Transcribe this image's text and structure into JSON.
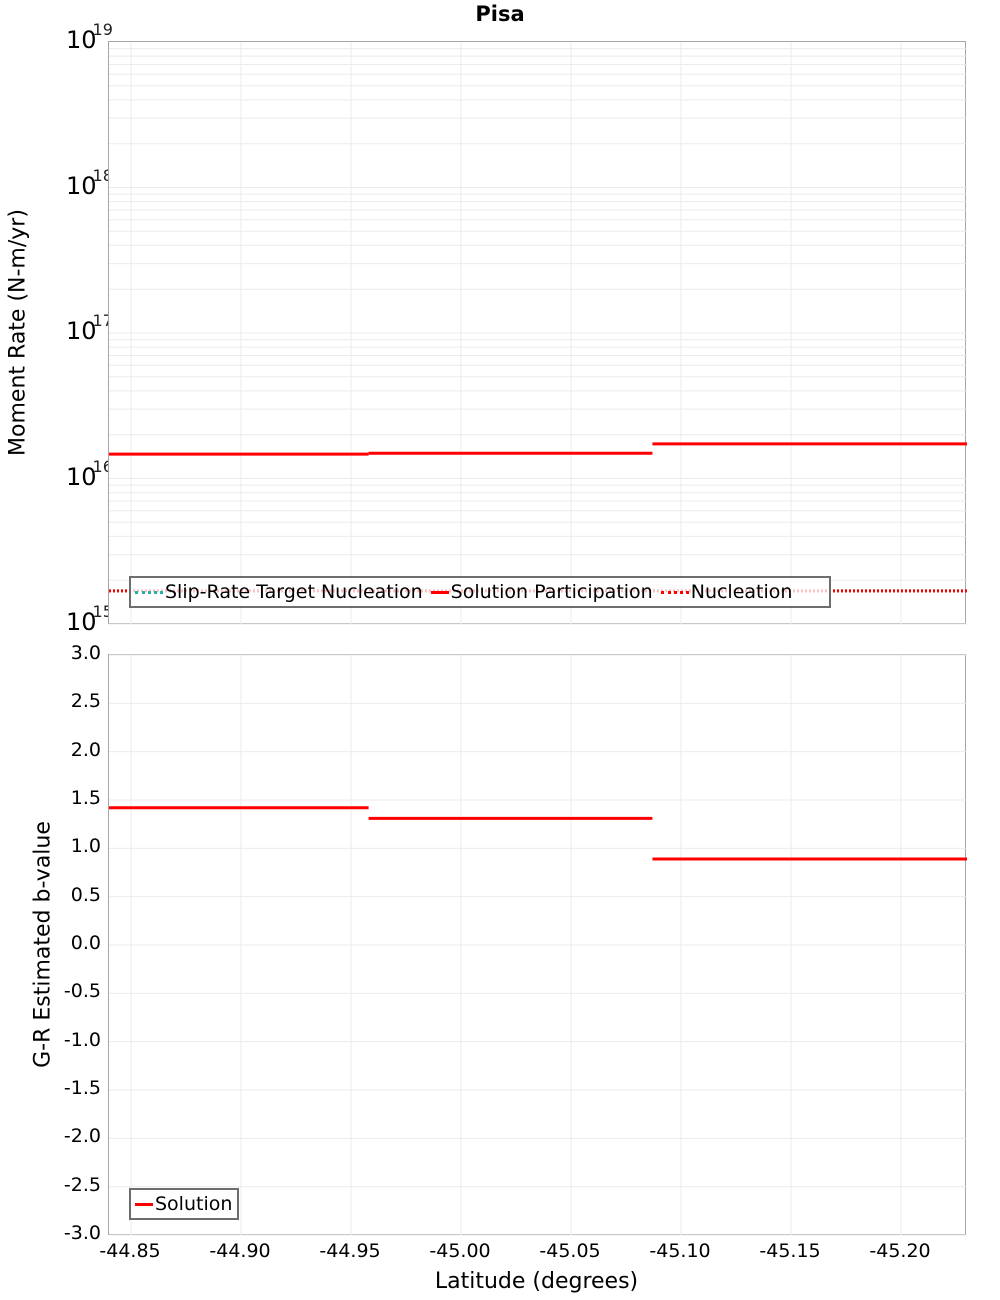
{
  "title": "Pisa",
  "chart_data": [
    {
      "type": "line",
      "title": "Pisa",
      "xlabel": "Latitude (degrees)",
      "ylabel": "Moment Rate (N-m/yr)",
      "yscale": "log",
      "ylim": [
        1000000000000000.0,
        1e+19
      ],
      "xlim": [
        -44.84,
        -45.23
      ],
      "x_ticks": [
        "-44.85",
        "-44.90",
        "-44.95",
        "-45.00",
        "-45.05",
        "-45.10",
        "-45.15",
        "-45.20"
      ],
      "y_ticks": [
        {
          "base": "10",
          "exp": "19"
        },
        {
          "base": "10",
          "exp": "18"
        },
        {
          "base": "10",
          "exp": "17"
        },
        {
          "base": "10",
          "exp": "16"
        },
        {
          "base": "10",
          "exp": "15"
        }
      ],
      "grid": true,
      "legend_position": "lower-left",
      "series": [
        {
          "name": "Slip-Rate Target Nucleation",
          "style": "dotted",
          "color": "#20b2aa",
          "segments": [
            {
              "x0": -44.84,
              "x1": -45.23,
              "y": 1690000000000000.0
            }
          ]
        },
        {
          "name": "Solution Participation",
          "style": "solid",
          "color": "#ff0000",
          "segments": [
            {
              "x0": -44.84,
              "x1": -44.958,
              "y": 1.47e+16
            },
            {
              "x0": -44.958,
              "x1": -45.087,
              "y": 1.49e+16
            },
            {
              "x0": -45.087,
              "x1": -45.23,
              "y": 1.73e+16
            }
          ]
        },
        {
          "name": "Nucleation",
          "style": "dotted",
          "color": "#ff0000",
          "segments": [
            {
              "x0": -44.84,
              "x1": -45.23,
              "y": 1690000000000000.0
            }
          ]
        }
      ]
    },
    {
      "type": "line",
      "xlabel": "Latitude (degrees)",
      "ylabel": "G-R Estimated b-value",
      "ylim": [
        -3.0,
        3.0
      ],
      "xlim": [
        -44.84,
        -45.23
      ],
      "x_ticks": [
        "-44.85",
        "-44.90",
        "-44.95",
        "-45.00",
        "-45.05",
        "-45.10",
        "-45.15",
        "-45.20"
      ],
      "y_ticks": [
        "3.0",
        "2.5",
        "2.0",
        "1.5",
        "1.0",
        "0.5",
        "0.0",
        "-0.5",
        "-1.0",
        "-1.5",
        "-2.0",
        "-2.5",
        "-3.0"
      ],
      "grid": true,
      "legend_position": "lower-left",
      "series": [
        {
          "name": "Solution",
          "style": "solid",
          "color": "#ff0000",
          "segments": [
            {
              "x0": -44.84,
              "x1": -44.958,
              "y": 1.42
            },
            {
              "x0": -44.958,
              "x1": -45.087,
              "y": 1.31
            },
            {
              "x0": -45.087,
              "x1": -45.23,
              "y": 0.89
            }
          ]
        }
      ]
    }
  ],
  "top": {
    "ylabel": "Moment Rate (N-m/yr)",
    "legend": [
      "Slip-Rate Target Nucleation",
      "Solution Participation",
      "Nucleation"
    ]
  },
  "bottom": {
    "ylabel": "G-R Estimated b-value",
    "xlabel": "Latitude (degrees)",
    "legend": [
      "Solution"
    ]
  },
  "colors": {
    "solution": "#ff0000",
    "target": "#20b2aa",
    "grid": "#ebebeb",
    "frame": "#a6a6a6"
  }
}
